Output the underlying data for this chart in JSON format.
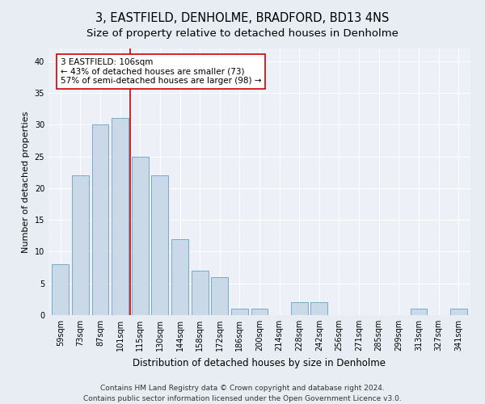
{
  "title": "3, EASTFIELD, DENHOLME, BRADFORD, BD13 4NS",
  "subtitle": "Size of property relative to detached houses in Denholme",
  "xlabel": "Distribution of detached houses by size in Denholme",
  "ylabel": "Number of detached properties",
  "categories": [
    "59sqm",
    "73sqm",
    "87sqm",
    "101sqm",
    "115sqm",
    "130sqm",
    "144sqm",
    "158sqm",
    "172sqm",
    "186sqm",
    "200sqm",
    "214sqm",
    "228sqm",
    "242sqm",
    "256sqm",
    "271sqm",
    "285sqm",
    "299sqm",
    "313sqm",
    "327sqm",
    "341sqm"
  ],
  "values": [
    8,
    22,
    30,
    31,
    25,
    22,
    12,
    7,
    6,
    1,
    1,
    0,
    2,
    2,
    0,
    0,
    0,
    0,
    1,
    0,
    1
  ],
  "bar_color": "#c9d9e8",
  "bar_edge_color": "#7aaac8",
  "vline_x_index": 3.5,
  "vline_color": "#cc0000",
  "annotation_line1": "3 EASTFIELD: 106sqm",
  "annotation_line2": "← 43% of detached houses are smaller (73)",
  "annotation_line3": "57% of semi-detached houses are larger (98) →",
  "annotation_box_color": "#ffffff",
  "annotation_box_edge": "#cc0000",
  "ylim": [
    0,
    42
  ],
  "yticks": [
    0,
    5,
    10,
    15,
    20,
    25,
    30,
    35,
    40
  ],
  "bg_color": "#e8edf3",
  "plot_bg_color": "#edf1f7",
  "grid_color": "#ffffff",
  "footer": "Contains HM Land Registry data © Crown copyright and database right 2024.\nContains public sector information licensed under the Open Government Licence v3.0.",
  "title_fontsize": 10.5,
  "subtitle_fontsize": 9.5,
  "xlabel_fontsize": 8.5,
  "ylabel_fontsize": 8,
  "tick_fontsize": 7,
  "annotation_fontsize": 7.5,
  "footer_fontsize": 6.5
}
